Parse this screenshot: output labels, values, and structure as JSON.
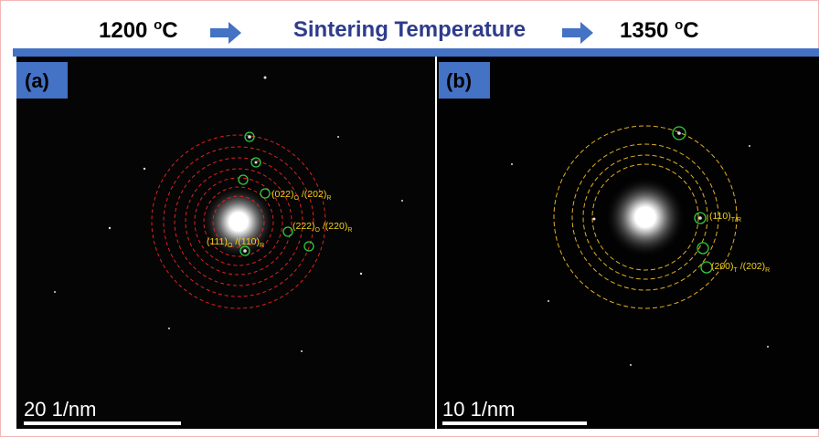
{
  "header": {
    "left": {
      "number": "1200 ",
      "degree": "o",
      "unit": "C"
    },
    "middle": "Sintering Temperature",
    "right": {
      "number": "1350 ",
      "degree": "o",
      "unit": "C"
    }
  },
  "panels": [
    {
      "label": "(a)",
      "scale_bar": "20 1/nm",
      "annotations": [
        [
          {
            "text": "(022)",
            "sub": "O"
          },
          {
            "text": " /(202)",
            "sub": "R"
          }
        ],
        [
          {
            "text": "(222)",
            "sub": "O"
          },
          {
            "text": " /(220)",
            "sub": "R"
          }
        ],
        [
          {
            "text": "(111)",
            "sub": "O"
          },
          {
            "text": " /(110)",
            "sub": "R"
          }
        ]
      ]
    },
    {
      "label": "(b)",
      "scale_bar": "10 1/nm",
      "annotations": [
        [
          {
            "text": "(110)",
            "sub": "T/R"
          }
        ],
        [
          {
            "text": "(200)",
            "sub": "T"
          },
          {
            "text": " /(202)",
            "sub": "R"
          }
        ]
      ]
    }
  ]
}
